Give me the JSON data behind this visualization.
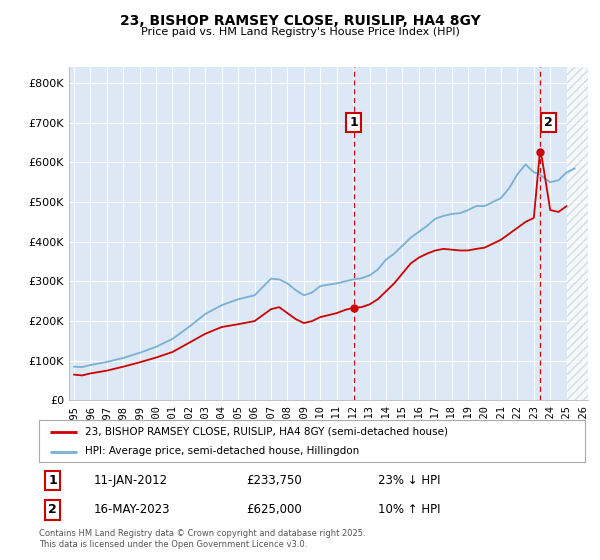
{
  "title": "23, BISHOP RAMSEY CLOSE, RUISLIP, HA4 8GY",
  "subtitle": "Price paid vs. HM Land Registry's House Price Index (HPI)",
  "legend_property": "23, BISHOP RAMSEY CLOSE, RUISLIP, HA4 8GY (semi-detached house)",
  "legend_hpi": "HPI: Average price, semi-detached house, Hillingdon",
  "transaction1_label": "1",
  "transaction1_date": "11-JAN-2012",
  "transaction1_price": "£233,750",
  "transaction1_hpi": "23% ↓ HPI",
  "transaction2_label": "2",
  "transaction2_date": "16-MAY-2023",
  "transaction2_price": "£625,000",
  "transaction2_hpi": "10% ↑ HPI",
  "footnote": "Contains HM Land Registry data © Crown copyright and database right 2025.\nThis data is licensed under the Open Government Licence v3.0.",
  "property_color": "#cc0000",
  "hpi_color": "#7ab0d4",
  "dashed_line_color": "#cc0000",
  "background_color": "#dce8f5",
  "ylim": [
    0,
    840000
  ],
  "yticks": [
    0,
    100000,
    200000,
    300000,
    400000,
    500000,
    600000,
    700000,
    800000
  ],
  "ytick_labels": [
    "£0",
    "£100K",
    "£200K",
    "£300K",
    "£400K",
    "£500K",
    "£600K",
    "£700K",
    "£800K"
  ],
  "transaction1_x": 2012.04,
  "transaction1_y": 233750,
  "transaction2_x": 2023.37,
  "transaction2_y": 625000,
  "vline1_x": 2012.04,
  "vline2_x": 2023.37,
  "xlim_left": 1994.7,
  "xlim_right": 2026.3,
  "hatch_start": 2025.0
}
